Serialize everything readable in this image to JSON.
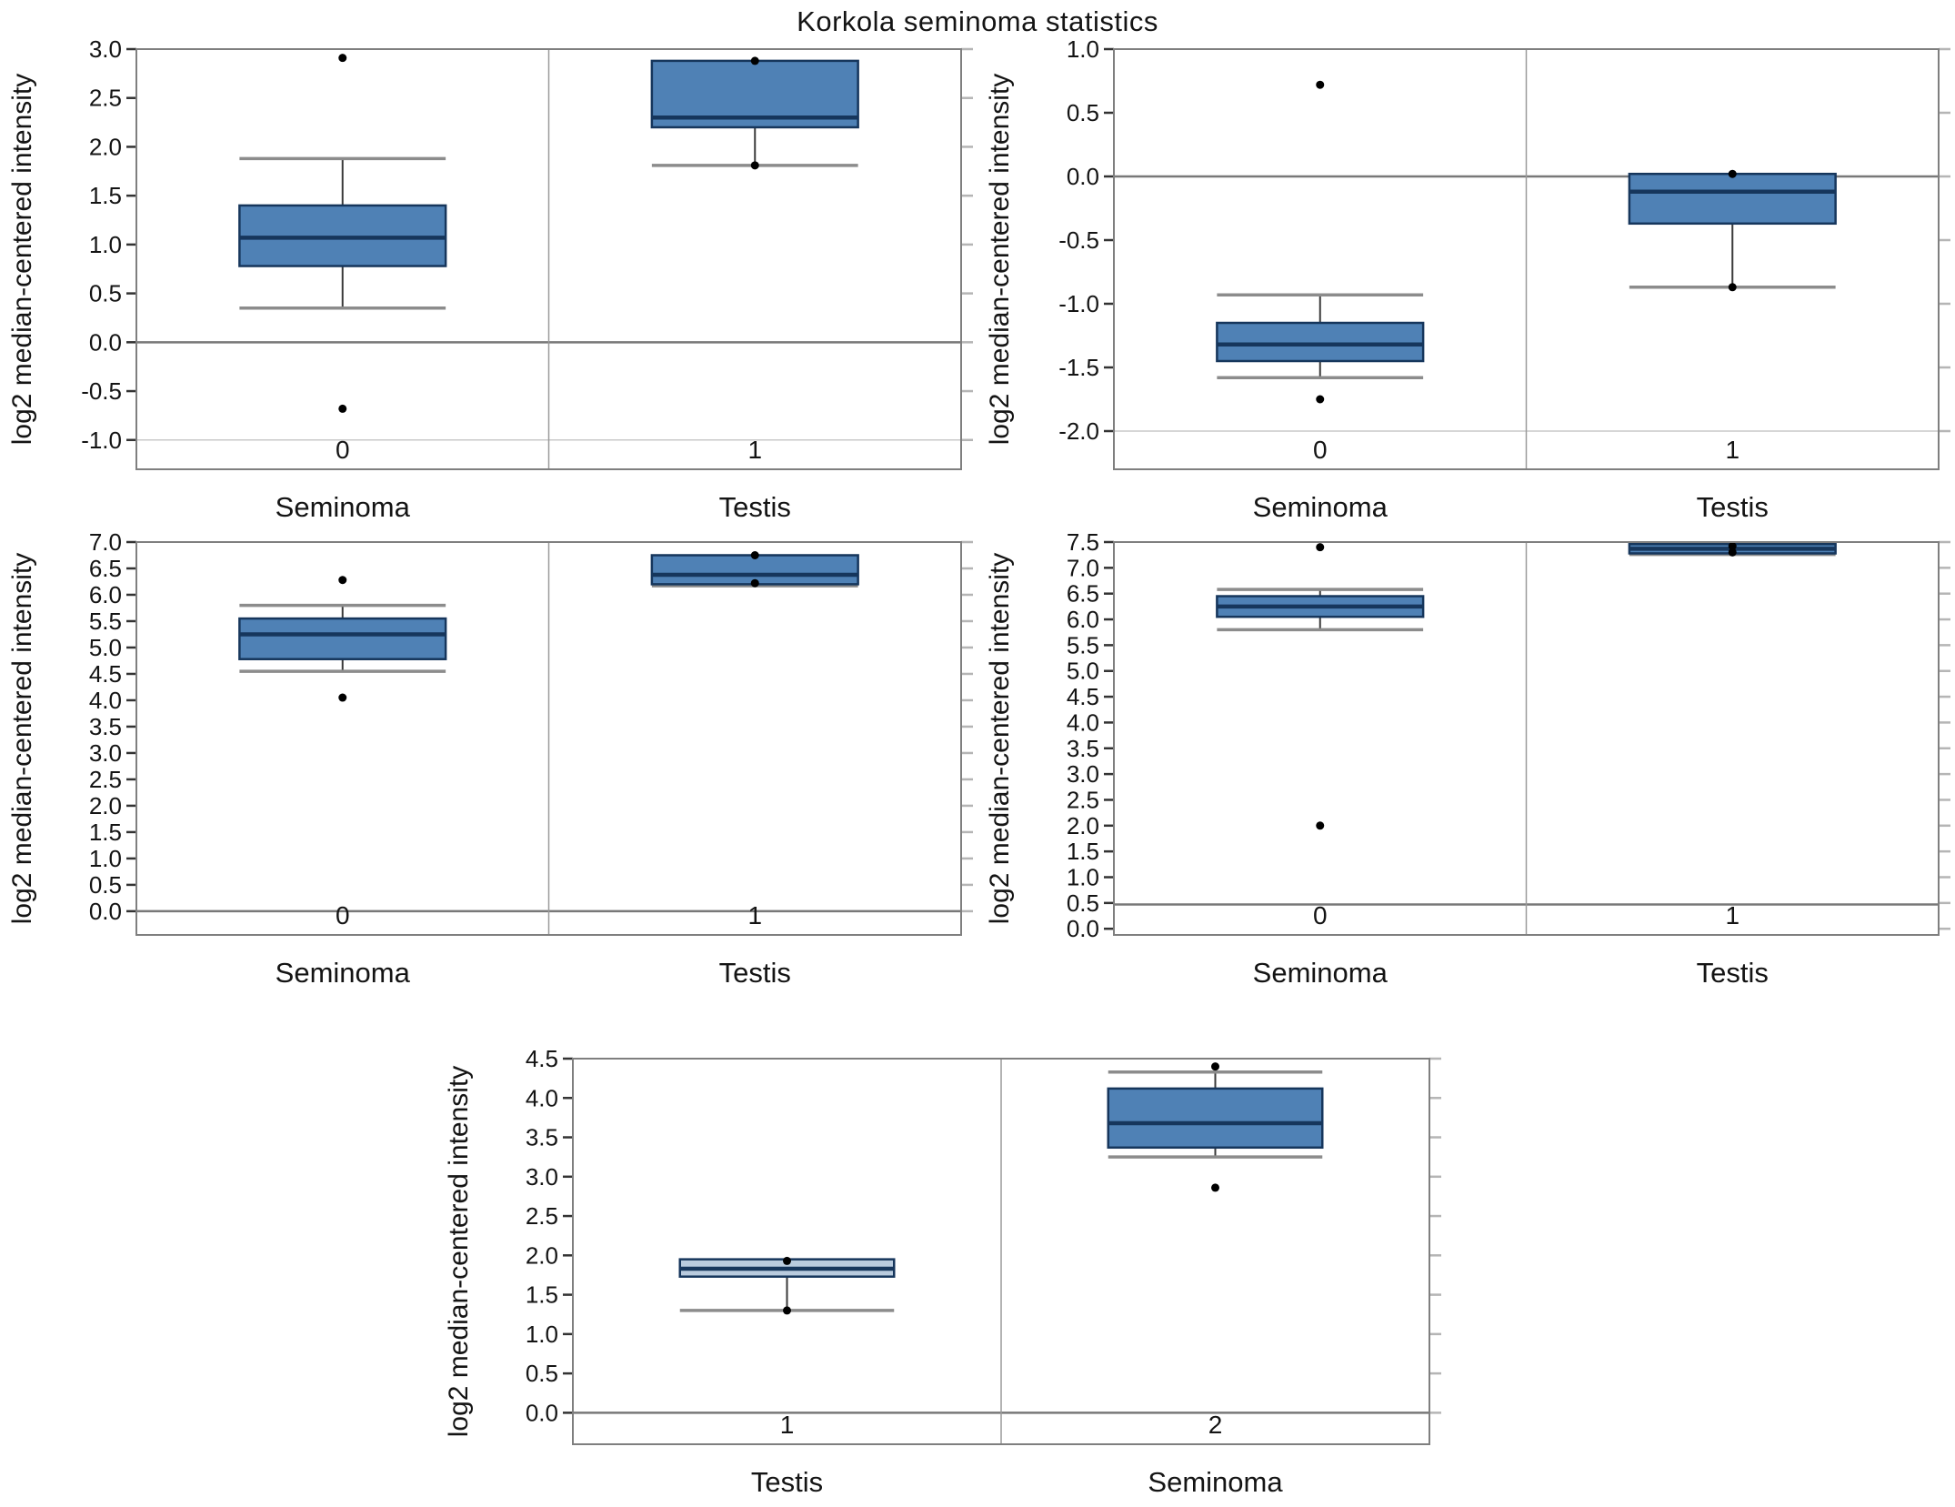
{
  "figure": {
    "title": "Korkola seminoma statistics",
    "ylabel": "log2 median-centered intensity"
  },
  "colors": {
    "box_fill": "#4f81b5",
    "box_fill_light": "#b9cbde",
    "box_stroke": "#16365c",
    "median": "#16365c",
    "frame": "#7f7f7f",
    "divider": "#9a9a9a",
    "zero_line": "#787878",
    "grid_light": "#c9c9c9",
    "cap": "#8c8c8c",
    "whisker": "#3a3a3a",
    "dot": "#000000",
    "text": "#141414",
    "tick_left": "#333333",
    "tick_right": "#b5b5b5"
  },
  "chart_data": [
    {
      "type": "box",
      "position": "top-left",
      "ylabel": "log2 median-centered intensity",
      "ylim": [
        -1.3,
        3.0
      ],
      "yticks": [
        3.0,
        2.5,
        2.0,
        1.5,
        1.0,
        0.5,
        0.0,
        -0.5,
        -1.0
      ],
      "hlines": [
        {
          "y": 0.0,
          "strong": true
        },
        {
          "y": -1.0,
          "strong": false
        }
      ],
      "groups": [
        {
          "code": "0",
          "label": "Seminoma",
          "q1": 0.78,
          "median": 1.07,
          "q3": 1.4,
          "whisker_low": 0.35,
          "whisker_high": 1.88,
          "dots": [
            2.91,
            -0.68
          ],
          "light": false
        },
        {
          "code": "1",
          "label": "Testis",
          "q1": 2.2,
          "median": 2.3,
          "q3": 2.88,
          "whisker_low": 1.81,
          "whisker_high": null,
          "dots": [
            2.88,
            1.81
          ],
          "light": false
        }
      ]
    },
    {
      "type": "box",
      "position": "top-right",
      "ylabel": "log2 median-centered intensity",
      "ylim": [
        -2.3,
        1.0
      ],
      "yticks": [
        1.0,
        0.5,
        0.0,
        -0.5,
        -1.0,
        -1.5,
        -2.0
      ],
      "hlines": [
        {
          "y": 0.0,
          "strong": true
        },
        {
          "y": -2.0,
          "strong": false
        }
      ],
      "groups": [
        {
          "code": "0",
          "label": "Seminoma",
          "q1": -1.45,
          "median": -1.32,
          "q3": -1.15,
          "whisker_low": -1.58,
          "whisker_high": -0.93,
          "dots": [
            0.72,
            -1.75
          ],
          "light": false
        },
        {
          "code": "1",
          "label": "Testis",
          "q1": -0.37,
          "median": -0.12,
          "q3": 0.02,
          "whisker_low": -0.87,
          "whisker_high": null,
          "dots": [
            0.02,
            -0.87
          ],
          "light": false
        }
      ]
    },
    {
      "type": "box",
      "position": "middle-left",
      "ylabel": "log2 median-centered intensity",
      "ylim": [
        -0.45,
        7.0
      ],
      "yticks": [
        7.0,
        6.5,
        6.0,
        5.5,
        5.0,
        4.5,
        4.0,
        3.5,
        3.0,
        2.5,
        2.0,
        1.5,
        1.0,
        0.5,
        0.0
      ],
      "hlines": [
        {
          "y": 0.0,
          "strong": true
        }
      ],
      "groups": [
        {
          "code": "0",
          "label": "Seminoma",
          "q1": 4.78,
          "median": 5.25,
          "q3": 5.55,
          "whisker_low": 4.55,
          "whisker_high": 5.8,
          "dots": [
            6.28,
            4.05
          ],
          "light": false
        },
        {
          "code": "1",
          "label": "Testis",
          "q1": 6.2,
          "median": 6.38,
          "q3": 6.75,
          "whisker_low": 6.17,
          "whisker_high": null,
          "dots": [
            6.75,
            6.22
          ],
          "light": false
        }
      ]
    },
    {
      "type": "box",
      "position": "middle-right",
      "ylabel": "log2 median-centered intensity",
      "ylim": [
        -0.12,
        7.5
      ],
      "yticks": [
        7.5,
        7.0,
        6.5,
        6.0,
        5.5,
        5.0,
        4.5,
        4.0,
        3.5,
        3.0,
        2.5,
        2.0,
        1.5,
        1.0,
        0.5,
        0.0
      ],
      "hlines": [
        {
          "y": 0.47,
          "strong": true
        }
      ],
      "groups": [
        {
          "code": "0",
          "label": "Seminoma",
          "q1": 6.05,
          "median": 6.25,
          "q3": 6.45,
          "whisker_low": 5.8,
          "whisker_high": 6.58,
          "dots": [
            7.4,
            2.0
          ],
          "light": false
        },
        {
          "code": "1",
          "label": "Testis",
          "q1": 7.28,
          "median": 7.37,
          "q3": 7.46,
          "whisker_low": 7.26,
          "whisker_high": 7.47,
          "dots": [
            7.42,
            7.3
          ],
          "light": false
        }
      ]
    },
    {
      "type": "box",
      "position": "bottom-center",
      "ylabel": "log2 median-centered intensity",
      "ylim": [
        -0.4,
        4.5
      ],
      "yticks": [
        4.5,
        4.0,
        3.5,
        3.0,
        2.5,
        2.0,
        1.5,
        1.0,
        0.5,
        0.0
      ],
      "hlines": [
        {
          "y": 0.0,
          "strong": true
        }
      ],
      "groups": [
        {
          "code": "1",
          "label": "Testis",
          "q1": 1.73,
          "median": 1.83,
          "q3": 1.95,
          "whisker_low": 1.3,
          "whisker_high": null,
          "dots": [
            1.93,
            1.3
          ],
          "light": true
        },
        {
          "code": "2",
          "label": "Seminoma",
          "q1": 3.37,
          "median": 3.68,
          "q3": 4.12,
          "whisker_low": 3.25,
          "whisker_high": 4.33,
          "dots": [
            4.4,
            2.86
          ],
          "light": false
        }
      ]
    }
  ]
}
